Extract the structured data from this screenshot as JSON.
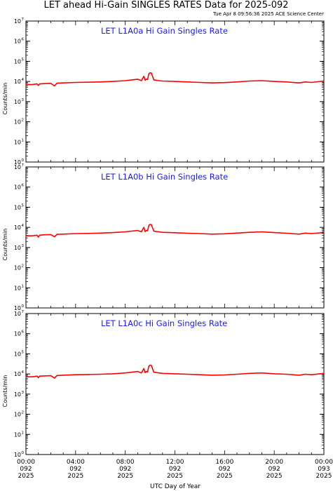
{
  "figure": {
    "title": "LET ahead Hi-Gain SINGLES RATES Data for 2025-092",
    "timestamp": "Tue Apr  8 09:56:36 2025 ACE Science Center",
    "xlabel": "UTC Day of Year",
    "series_color": "#ff0000",
    "panel_title_color": "#1a1aff"
  },
  "chart_data": [
    {
      "type": "line",
      "title": "LET L1A0a Hi Gain Singles Rate",
      "ylabel": "Counts/min",
      "yscale": "log",
      "ylim": [
        1,
        10000000
      ],
      "xlim_hours": [
        0,
        24
      ],
      "yticks": [
        {
          "base": "10",
          "exp": "0"
        },
        {
          "base": "10",
          "exp": "1"
        },
        {
          "base": "10",
          "exp": "2"
        },
        {
          "base": "10",
          "exp": "3"
        },
        {
          "base": "10",
          "exp": "4"
        },
        {
          "base": "10",
          "exp": "5"
        },
        {
          "base": "10",
          "exp": "6"
        },
        {
          "base": "10",
          "exp": "7"
        }
      ],
      "x": [
        0.0,
        0.5,
        0.9,
        1.0,
        1.1,
        1.5,
        2.0,
        2.3,
        2.5,
        3.0,
        4.0,
        5.0,
        6.0,
        7.0,
        8.0,
        8.5,
        9.0,
        9.3,
        9.5,
        9.6,
        9.7,
        9.8,
        9.9,
        10.0,
        10.1,
        10.3,
        10.5,
        10.7,
        11.0,
        12.0,
        13.0,
        14.0,
        15.0,
        16.0,
        17.0,
        18.0,
        19.0,
        20.0,
        21.0,
        22.0,
        22.5,
        23.0,
        24.0
      ],
      "values": [
        7000,
        7000,
        7600,
        6300,
        7600,
        7800,
        8000,
        6000,
        8200,
        8500,
        9000,
        9200,
        9500,
        10000,
        11000,
        12000,
        13000,
        11000,
        18000,
        11500,
        13000,
        12500,
        24000,
        27000,
        26000,
        12000,
        11500,
        11000,
        10500,
        10000,
        9500,
        9000,
        8500,
        8800,
        9500,
        10500,
        11000,
        10000,
        9500,
        8500,
        9500,
        9000,
        10500
      ]
    },
    {
      "type": "line",
      "title": "LET L1A0b Hi Gain Singles Rate",
      "ylabel": "Counts/min",
      "yscale": "log",
      "ylim": [
        1,
        10000000
      ],
      "xlim_hours": [
        0,
        24
      ],
      "yticks": [
        {
          "base": "10",
          "exp": "0"
        },
        {
          "base": "10",
          "exp": "1"
        },
        {
          "base": "10",
          "exp": "2"
        },
        {
          "base": "10",
          "exp": "3"
        },
        {
          "base": "10",
          "exp": "4"
        },
        {
          "base": "10",
          "exp": "5"
        },
        {
          "base": "10",
          "exp": "6"
        },
        {
          "base": "10",
          "exp": "7"
        }
      ],
      "x": [
        0.0,
        0.5,
        0.9,
        1.0,
        1.1,
        1.5,
        2.0,
        2.3,
        2.5,
        3.0,
        4.0,
        5.0,
        6.0,
        7.0,
        8.0,
        8.5,
        9.0,
        9.3,
        9.5,
        9.6,
        9.7,
        9.8,
        9.9,
        10.0,
        10.1,
        10.3,
        10.5,
        10.7,
        11.0,
        12.0,
        13.0,
        14.0,
        15.0,
        16.0,
        17.0,
        18.0,
        19.0,
        20.0,
        21.0,
        22.0,
        22.5,
        23.0,
        24.0
      ],
      "values": [
        3800,
        3800,
        4100,
        3300,
        4100,
        4300,
        4400,
        3400,
        4500,
        4600,
        4900,
        5000,
        5200,
        5500,
        6000,
        6500,
        7000,
        6000,
        10000,
        6200,
        7000,
        6800,
        12500,
        14000,
        13500,
        6500,
        6200,
        6000,
        5700,
        5400,
        5100,
        4900,
        4600,
        4800,
        5200,
        5700,
        6000,
        5500,
        5100,
        4600,
        5200,
        4900,
        5600
      ]
    },
    {
      "type": "line",
      "title": "LET L1A0c Hi Gain Singles Rate",
      "ylabel": "Counts/min",
      "yscale": "log",
      "ylim": [
        1,
        10000000
      ],
      "xlim_hours": [
        0,
        24
      ],
      "yticks": [
        {
          "base": "10",
          "exp": "0"
        },
        {
          "base": "10",
          "exp": "1"
        },
        {
          "base": "10",
          "exp": "2"
        },
        {
          "base": "10",
          "exp": "3"
        },
        {
          "base": "10",
          "exp": "4"
        },
        {
          "base": "10",
          "exp": "5"
        },
        {
          "base": "10",
          "exp": "6"
        },
        {
          "base": "10",
          "exp": "7"
        }
      ],
      "x": [
        0.0,
        0.5,
        0.9,
        1.0,
        1.1,
        1.5,
        2.0,
        2.3,
        2.5,
        3.0,
        4.0,
        5.0,
        6.0,
        7.0,
        8.0,
        8.5,
        9.0,
        9.3,
        9.5,
        9.6,
        9.7,
        9.8,
        9.9,
        10.0,
        10.1,
        10.3,
        10.5,
        10.7,
        11.0,
        12.0,
        13.0,
        14.0,
        15.0,
        16.0,
        17.0,
        18.0,
        19.0,
        20.0,
        21.0,
        22.0,
        22.5,
        23.0,
        24.0
      ],
      "values": [
        7200,
        7200,
        7800,
        6500,
        7800,
        8000,
        8200,
        6200,
        8400,
        8700,
        9200,
        9400,
        9700,
        10200,
        11200,
        12200,
        13300,
        11200,
        18500,
        11800,
        13300,
        12800,
        24500,
        27500,
        26500,
        12200,
        11800,
        11200,
        10700,
        10200,
        9700,
        9200,
        8700,
        9000,
        9700,
        10700,
        11200,
        10200,
        9700,
        8700,
        9700,
        9200,
        10700
      ]
    }
  ],
  "xticks": [
    {
      "hour": 0,
      "time": "00:00",
      "doy": "092",
      "year": "2025"
    },
    {
      "hour": 4,
      "time": "04:00",
      "doy": "092",
      "year": "2025"
    },
    {
      "hour": 8,
      "time": "08:00",
      "doy": "092",
      "year": "2025"
    },
    {
      "hour": 12,
      "time": "12:00",
      "doy": "092",
      "year": "2025"
    },
    {
      "hour": 16,
      "time": "16:00",
      "doy": "092",
      "year": "2025"
    },
    {
      "hour": 20,
      "time": "20:00",
      "doy": "092",
      "year": "2025"
    },
    {
      "hour": 24,
      "time": "00:00",
      "doy": "093",
      "year": "2025"
    }
  ]
}
